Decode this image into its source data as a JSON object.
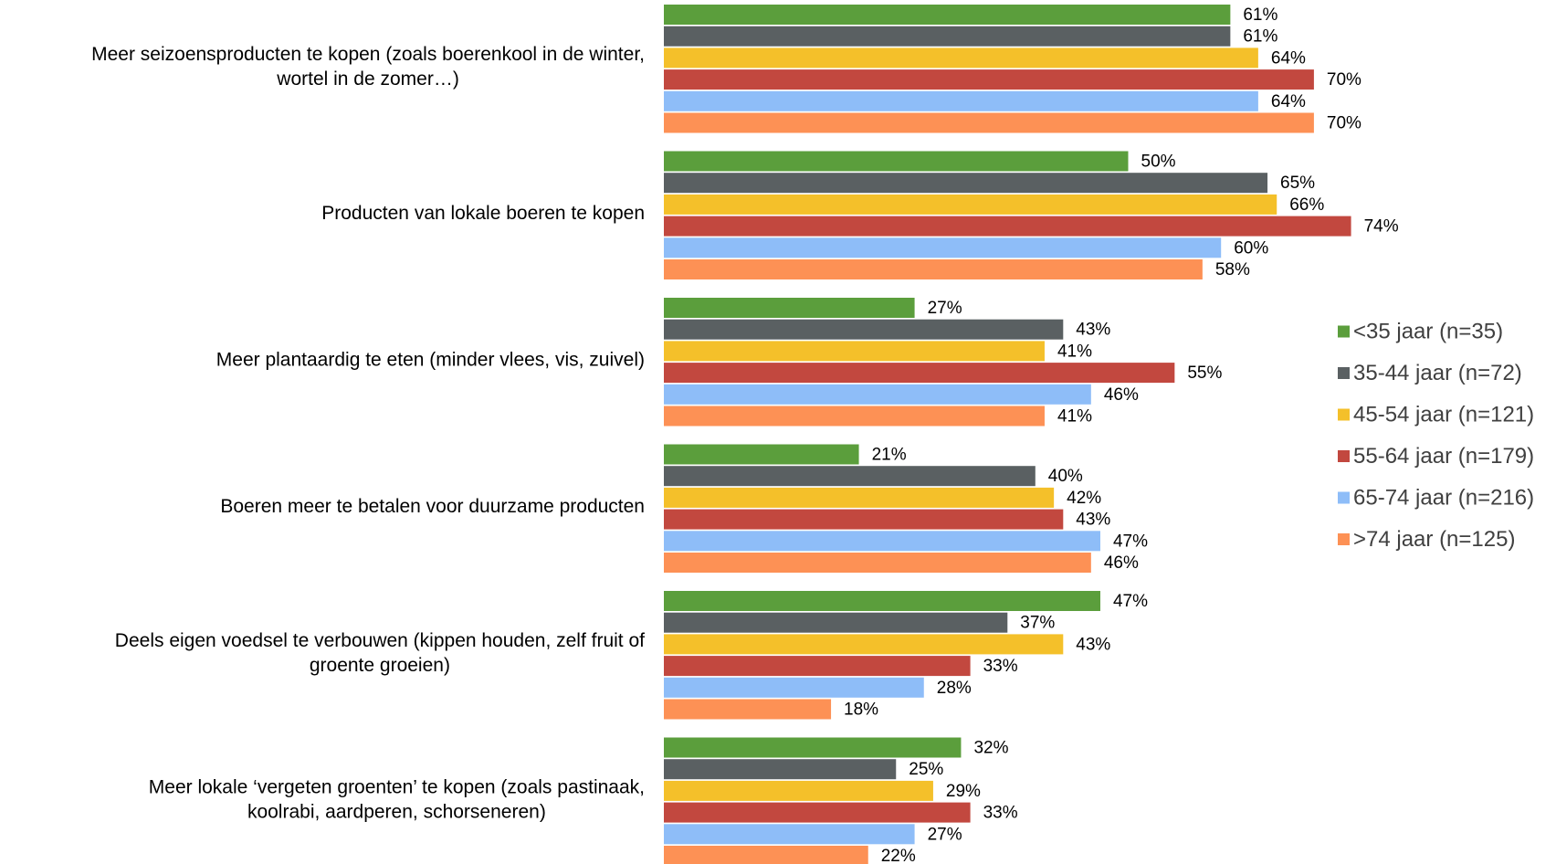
{
  "chart_data": {
    "type": "bar",
    "orientation": "horizontal",
    "categories": [
      [
        "Meer seizoensproducten te kopen (zoals boerenkool in de winter,",
        "wortel in de zomer…)"
      ],
      [
        "Producten van lokale boeren te kopen"
      ],
      [
        "Meer plantaardig te eten (minder vlees, vis, zuivel)"
      ],
      [
        "Boeren meer te betalen voor duurzame producten"
      ],
      [
        "Deels eigen voedsel te verbouwen (kippen houden, zelf fruit of",
        "groente groeien)"
      ],
      [
        "Meer lokale ‘vergeten groenten’ te kopen (zoals pastinaak,",
        "koolrabi, aardperen, schorseneren)"
      ]
    ],
    "series": [
      {
        "name": "<35 jaar (n=35)",
        "color": "#5b9e3c",
        "values": [
          61,
          50,
          27,
          21,
          47,
          32
        ],
        "labels": [
          "61%",
          "50%",
          "27%",
          "21%",
          "47%",
          "32%"
        ]
      },
      {
        "name": "35-44 jaar (n=72)",
        "color": "#5a6062",
        "values": [
          61,
          65,
          43,
          40,
          37,
          25
        ],
        "labels": [
          "61%",
          "65%",
          "43%",
          "40%",
          "37%",
          "25%"
        ]
      },
      {
        "name": "45-54 jaar (n=121)",
        "color": "#f4c02a",
        "values": [
          64,
          66,
          41,
          42,
          43,
          29
        ],
        "labels": [
          "64%",
          "66%",
          "41%",
          "42%",
          "43%",
          "29%"
        ]
      },
      {
        "name": "55-64 jaar (n=179)",
        "color": "#c2483f",
        "values": [
          70,
          74,
          55,
          43,
          33,
          33
        ],
        "labels": [
          "70%",
          "74%",
          "55%",
          "43%",
          "33%",
          "33%"
        ]
      },
      {
        "name": "65-74 jaar (n=216)",
        "color": "#8ebdf8",
        "values": [
          64,
          60,
          46,
          47,
          28,
          27
        ],
        "labels": [
          "64%",
          "60%",
          "46%",
          "47%",
          "28%",
          "27%"
        ]
      },
      {
        "name": ">74 jaar (n=125)",
        "color": "#fd9155",
        "values": [
          70,
          58,
          41,
          46,
          18,
          22
        ],
        "labels": [
          "70%",
          "58%",
          "41%",
          "46%",
          "18%",
          "22%"
        ]
      }
    ],
    "xlim": [
      0,
      100
    ],
    "grid": false,
    "legend_position": "right"
  }
}
